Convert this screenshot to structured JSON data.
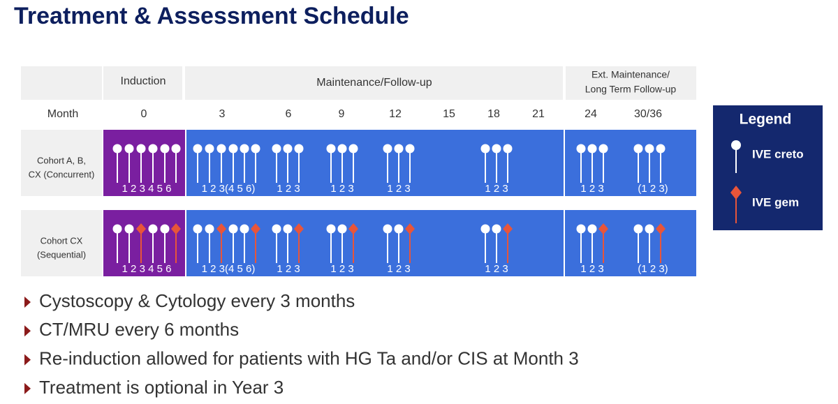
{
  "title": "Treatment & Assessment Schedule",
  "header": {
    "induction": "Induction",
    "maintenance": "Maintenance/Follow-up",
    "extended": [
      "Ext. Maintenance/",
      "Long Term Follow-up"
    ]
  },
  "month_label": "Month",
  "months": [
    "0",
    "3",
    "6",
    "9",
    "12",
    "15",
    "18",
    "21",
    "24",
    "30/36"
  ],
  "cohorts": [
    {
      "label": [
        "Cohort A, B,",
        "CX (Concurrent)"
      ],
      "dose_labels": [
        "1 2 3 4 5 6",
        "1 2 3(4 5 6)",
        "1 2 3",
        "1 2 3",
        "1 2 3",
        "1 2 3",
        "1 2 3",
        "(1 2 3)"
      ]
    },
    {
      "label": [
        "Cohort CX",
        "(Sequential)"
      ],
      "dose_labels": [
        "1 2 3 4 5 6",
        "1 2 3(4 5 6)",
        "1 2 3",
        "1 2 3",
        "1 2 3",
        "1 2 3",
        "1 2 3",
        "(1 2 3)"
      ]
    }
  ],
  "legend": {
    "title": "Legend",
    "items": [
      "IVE creto",
      "IVE gem"
    ]
  },
  "bullets": [
    "Cystoscopy & Cytology every 3 months",
    "CT/MRU every 6 months",
    "Re-induction allowed for patients with HG Ta and/or CIS at Month 3",
    "Treatment is optional in Year 3"
  ]
}
